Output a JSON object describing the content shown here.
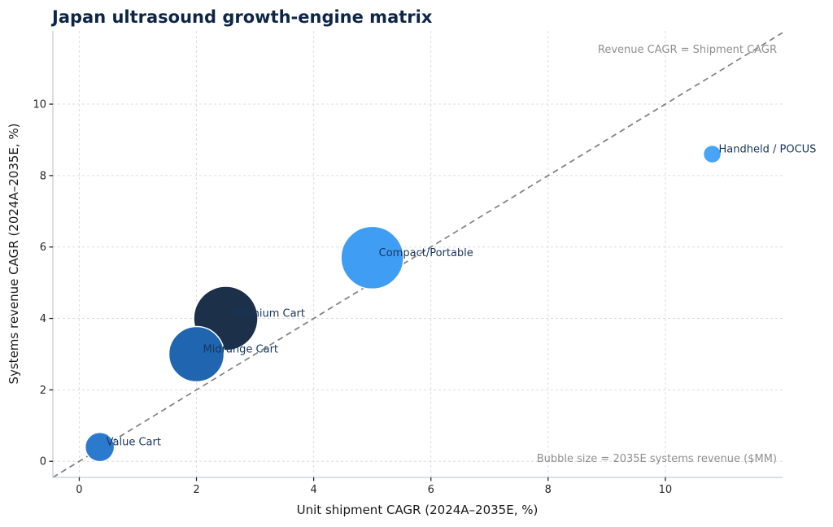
{
  "chart_data": {
    "type": "scatter",
    "title": "Japan ultrasound growth-engine matrix",
    "xlabel": "Unit shipment CAGR (2024A–2035E, %)",
    "ylabel": "Systems revenue CAGR (2024A–2035E, %)",
    "xticks": [
      0,
      2,
      4,
      6,
      8,
      10
    ],
    "yticks": [
      0,
      2,
      4,
      6,
      8,
      10
    ],
    "xlim": [
      -0.45,
      12.0
    ],
    "ylim": [
      -0.45,
      12.05
    ],
    "grid": true,
    "legend_position": "none",
    "reference_line": {
      "type": "y = x",
      "style": "dashed",
      "label": "Revenue CAGR = Shipment CAGR"
    },
    "size_note": "Bubble size = 2035E systems revenue ($MM)",
    "points": [
      {
        "label": "Value Cart",
        "x": 0.35,
        "y": 0.4,
        "radius_px": 18,
        "color": "#2b7ace"
      },
      {
        "label": "Midrange Cart",
        "x": 2.0,
        "y": 3.0,
        "radius_px": 34,
        "color": "#1f65b0"
      },
      {
        "label": "Premium Cart",
        "x": 2.5,
        "y": 4.0,
        "radius_px": 39.5,
        "color": "#1c3049"
      },
      {
        "label": "Compact/Portable",
        "x": 5.0,
        "y": 5.7,
        "radius_px": 38.5,
        "color": "#3f9ef3"
      },
      {
        "label": "Handheld / POCUS",
        "x": 10.8,
        "y": 8.6,
        "radius_px": 11,
        "color": "#47a4f6"
      }
    ]
  },
  "colors": {
    "background": "#ffffff",
    "title": "#0d2647",
    "axis_label": "#1a1a1a",
    "tick_label": "#262626",
    "tick_mark": "#262626",
    "spine": "#c6ccd2",
    "grid": "#dcdcdc",
    "reference_line": "#7f7f7f",
    "annotation": "#8f8f8f",
    "bubble_label": "#17365d",
    "bubble_edge": "#ffffff"
  }
}
